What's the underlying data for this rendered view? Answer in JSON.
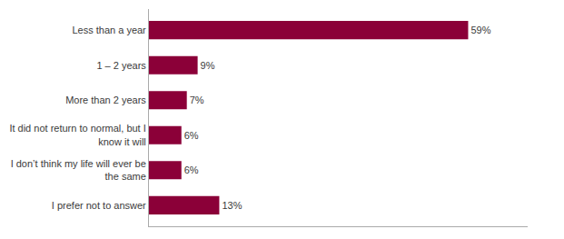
{
  "chart_data": {
    "type": "bar",
    "orientation": "horizontal",
    "categories": [
      "I prefer not to answer",
      "I don’t think my life will ever be\nthe same",
      "It did not return to normal, but I\nknow it will",
      "More than 2 years",
      "1 – 2 years",
      "Less than a year"
    ],
    "values": [
      13,
      6,
      6,
      7,
      9,
      59
    ],
    "value_labels": [
      "13%",
      "6%",
      "6%",
      "7%",
      "9%",
      "59%"
    ],
    "data_labels": true,
    "color": "#8B0038",
    "xlim": [
      0,
      70
    ],
    "grid": false,
    "tick_labels": "y"
  }
}
